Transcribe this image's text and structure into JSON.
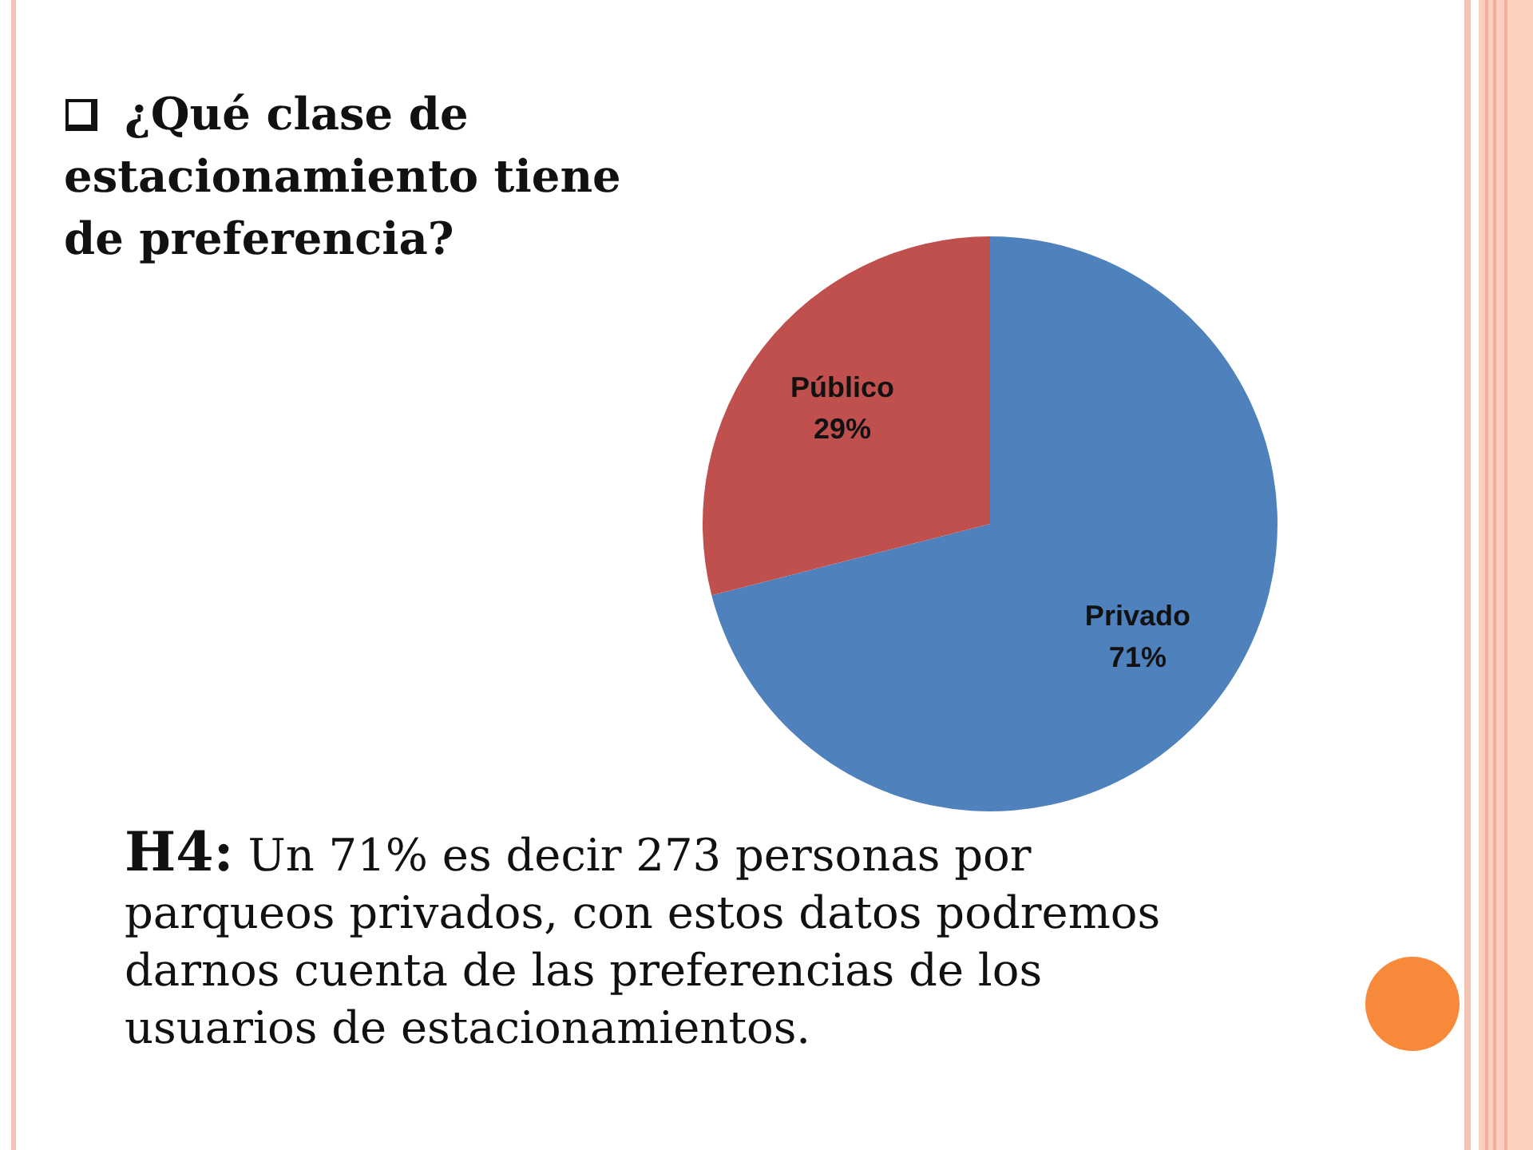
{
  "chart_data": {
    "type": "pie",
    "title": "¿Qué clase de estacionamiento tiene de preferencia?",
    "categories": [
      "Privado",
      "Público"
    ],
    "values": [
      71,
      29
    ],
    "colors": [
      "#4f81bd",
      "#c0504d"
    ],
    "value_labels": [
      "71%",
      "29%"
    ],
    "annotations": [
      "H4: Un 71% es decir 273 personas por parqueos privados, con estos datos podremos darnos cuenta de las preferencias de los usuarios de estacionamientos."
    ]
  }
}
